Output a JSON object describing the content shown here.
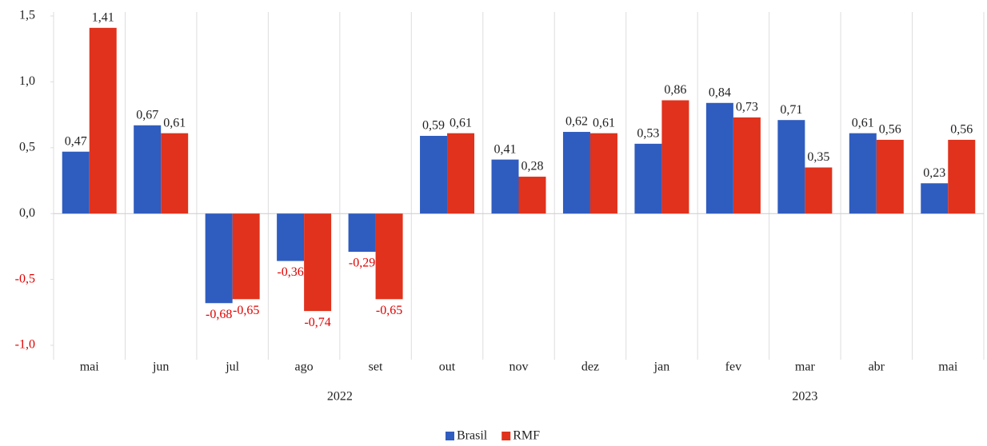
{
  "chart_data": {
    "type": "bar",
    "categories": [
      "mai",
      "jun",
      "jul",
      "ago",
      "set",
      "out",
      "nov",
      "dez",
      "jan",
      "fev",
      "mar",
      "abr",
      "mai"
    ],
    "x_groups": [
      {
        "label": "2022",
        "span": 8
      },
      {
        "label": "2023",
        "span": 5
      }
    ],
    "series": [
      {
        "name": "Brasil",
        "color": "#2f5cbf",
        "values": [
          0.47,
          0.67,
          -0.68,
          -0.36,
          -0.29,
          0.59,
          0.41,
          0.62,
          0.53,
          0.84,
          0.71,
          0.61,
          0.23
        ],
        "value_labels": [
          "0,47",
          "0,67",
          "-0,68",
          "-0,36",
          "-0,29",
          "0,59",
          "0,41",
          "0,62",
          "0,53",
          "0,84",
          "0,71",
          "0,61",
          "0,23"
        ]
      },
      {
        "name": "RMF",
        "color": "#e0321c",
        "values": [
          1.41,
          0.61,
          -0.65,
          -0.74,
          -0.65,
          0.61,
          0.28,
          0.61,
          0.86,
          0.73,
          0.35,
          0.56,
          0.56
        ],
        "value_labels": [
          "1,41",
          "0,61",
          "-0,65",
          "-0,74",
          "-0,65",
          "0,61",
          "0,28",
          "0,61",
          "0,86",
          "0,73",
          "0,35",
          "0,56",
          "0,56"
        ]
      }
    ],
    "ylim": [
      -1.0,
      1.5
    ],
    "yticks": [
      {
        "value": -1.0,
        "label": "-1,0"
      },
      {
        "value": -0.5,
        "label": "-0,5"
      },
      {
        "value": 0.0,
        "label": "0,0"
      },
      {
        "value": 0.5,
        "label": "0,5"
      },
      {
        "value": 1.0,
        "label": "1,0"
      },
      {
        "value": 1.5,
        "label": "1,5"
      }
    ],
    "negative_label_color": "#e00000",
    "legend": "bottom"
  }
}
